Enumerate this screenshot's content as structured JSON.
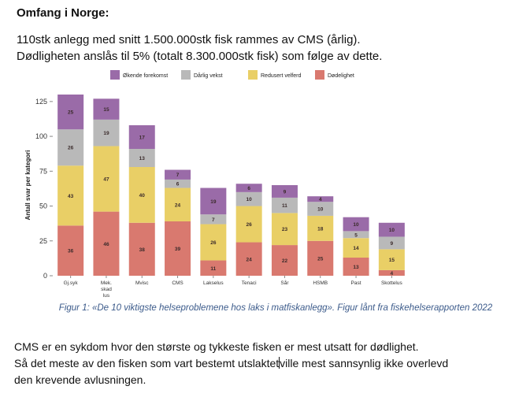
{
  "heading": "Omfang i Norge:",
  "intro": [
    "110stk anlegg med snitt 1.500.000stk fisk rammes av CMS (årlig).",
    "Dødligheten anslås til 5% (totalt 8.300.000stk fisk) som følge av dette."
  ],
  "caption": "Figur 1: «De 10 viktigste helseproblemene hos laks i matfiskanlegg». Figur lånt fra fiskehelserapporten 2022",
  "body": {
    "line1": "CMS er en sykdom hvor den største og tykkeste fisken er mest utsatt for dødlighet.",
    "line2a": "Så det meste av den fisken som vart bestemt utslaktet",
    "line2b": "ville mest sannsynlig ikke overlevd",
    "line3": "den krevende avlusningen."
  },
  "chart_data": {
    "type": "bar",
    "stacked": true,
    "title": "",
    "xlabel": "",
    "ylabel": "Antall svar per kategori",
    "ylim": [
      0,
      130
    ],
    "yticks": [
      0,
      25,
      50,
      75,
      100,
      125
    ],
    "legend_position": "top",
    "categories": [
      "Gj.syk",
      "Mek.\nskad\nlus",
      "Mvisc",
      "CMS",
      "Lakselus",
      "Tenaci",
      "Sår",
      "HSMB",
      "Past",
      "Skottelus"
    ],
    "series": [
      {
        "name": "Dødelighet",
        "color": "#d9796f",
        "values": [
          36,
          46,
          38,
          39,
          11,
          24,
          22,
          25,
          13,
          4
        ]
      },
      {
        "name": "Redusert velferd",
        "color": "#e9cf66",
        "values": [
          43,
          47,
          40,
          24,
          26,
          26,
          23,
          18,
          14,
          15
        ]
      },
      {
        "name": "Dårlig vekst",
        "color": "#b9b9b9",
        "values": [
          26,
          19,
          13,
          6,
          7,
          10,
          11,
          10,
          5,
          9
        ]
      },
      {
        "name": "Økende forekomst",
        "color": "#9a6ba8",
        "values": [
          25,
          15,
          17,
          7,
          19,
          6,
          9,
          4,
          10,
          10
        ]
      }
    ],
    "legend_order": [
      "Økende forekomst",
      "Dårlig vekst",
      "Redusert velferd",
      "Dødelighet"
    ]
  }
}
